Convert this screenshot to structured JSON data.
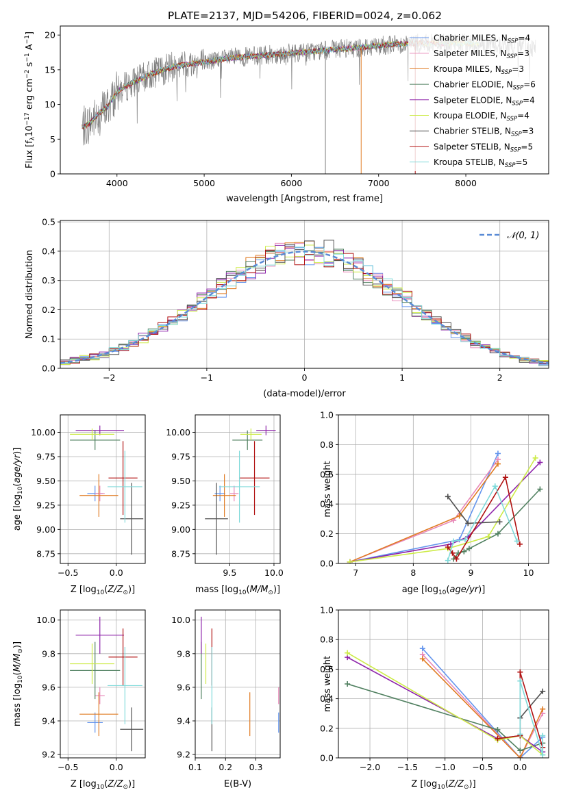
{
  "figure_title": "PLATE=2137, MJD=54206, FIBERID=0024, z=0.062",
  "colors": {
    "Chabrier MILES": "#6495ED",
    "Salpeter MILES": "#E889B9",
    "Kroupa MILES": "#E07B22",
    "Chabrier ELODIE": "#508060",
    "Salpeter ELODIE": "#8E24AA",
    "Kroupa ELODIE": "#CDEB48",
    "Chabrier STELIB": "#505050",
    "Salpeter STELIB": "#B01010",
    "Kroupa STELIB": "#7FDADA"
  },
  "model_order": [
    "Chabrier MILES",
    "Salpeter MILES",
    "Kroupa MILES",
    "Chabrier ELODIE",
    "Salpeter ELODIE",
    "Kroupa ELODIE",
    "Chabrier STELIB",
    "Salpeter STELIB",
    "Kroupa STELIB"
  ],
  "chart_data": [
    {
      "id": "spectrum",
      "type": "line",
      "title": "PLATE=2137, MJD=54206, FIBERID=0024, z=0.062",
      "xlabel": "wavelength [Angstrom, rest frame]",
      "ylabel": "Flux [f_λ 10^-17 erg cm^-2 s^-1 A^-1]",
      "xlim": [
        3350,
        8950
      ],
      "ylim": [
        0,
        21.3
      ],
      "xticks": [
        4000,
        5000,
        6000,
        7000,
        8000
      ],
      "yticks": [
        0,
        5,
        10,
        15,
        20
      ],
      "continuum": {
        "x": [
          3600,
          3700,
          3800,
          3900,
          4000,
          4100,
          4200,
          4300,
          4400,
          4500,
          4700,
          5000,
          5300,
          5600,
          5900,
          6200,
          6500,
          6800,
          7100,
          7400,
          7700,
          8000,
          8300,
          8600,
          8800
        ],
        "y": [
          6.6,
          7.4,
          8.8,
          9.8,
          11.8,
          12.6,
          13.3,
          13.8,
          14.4,
          14.9,
          15.6,
          16.1,
          16.7,
          17.0,
          17.3,
          17.6,
          17.9,
          18.2,
          18.6,
          18.8,
          18.8,
          18.8,
          18.6,
          18.4,
          18.2
        ]
      },
      "data_noise_level": 1.4,
      "series": [
        {
          "name": "Chabrier MILES",
          "n_ssp": "4",
          "label": "Chabrier MILES, N_SSP=4"
        },
        {
          "name": "Salpeter MILES",
          "n_ssp": "3",
          "label": "Salpeter MILES, N_SSP=3"
        },
        {
          "name": "Kroupa MILES",
          "n_ssp": "3",
          "label": "Kroupa MILES, N_SSP=3"
        },
        {
          "name": "Chabrier ELODIE",
          "n_ssp": "6",
          "label": "Chabrier ELODIE, N_SSP=6"
        },
        {
          "name": "Salpeter ELODIE",
          "n_ssp": "4",
          "label": "Salpeter ELODIE, N_SSP=4"
        },
        {
          "name": "Kroupa ELODIE",
          "n_ssp": "4",
          "label": "Kroupa ELODIE, N_SSP=4"
        },
        {
          "name": "Chabrier STELIB",
          "n_ssp": "3",
          "label": "Chabrier STELIB, N_SSP=3"
        },
        {
          "name": "Salpeter STELIB",
          "n_ssp": "5",
          "label": "Salpeter STELIB, N_SSP=5"
        },
        {
          "name": "Kroupa STELIB",
          "n_ssp": "5",
          "label": "Kroupa STELIB, N_SSP=5"
        }
      ],
      "legend_position": "right"
    },
    {
      "id": "residuals",
      "type": "histogram",
      "xlabel": "(data-model)/error",
      "ylabel": "Normed distribution",
      "xlim": [
        -2.5,
        2.5
      ],
      "ylim": [
        0,
        0.505
      ],
      "xticks": [
        -2,
        -1,
        0,
        1,
        2
      ],
      "yticks": [
        0.0,
        0.1,
        0.2,
        0.3,
        0.4,
        0.5
      ],
      "bin_width": 0.1,
      "reference_curve": {
        "name": "N(0,1)",
        "label": "𝒩(0, 1)",
        "mean": 0,
        "sigma": 1,
        "style": "dashed"
      },
      "legend_position": "upper right",
      "grid": true
    },
    {
      "id": "age_vs_Z",
      "type": "errorbar",
      "xlabel": "Z [log10(Z/Z⊙)]",
      "ylabel": "age [log10(age/yr)]",
      "xlim": [
        -0.58,
        0.3
      ],
      "ylim": [
        8.65,
        10.18
      ],
      "xticks": [
        -0.5,
        0.0
      ],
      "yticks": [
        8.75,
        9.0,
        9.25,
        9.5,
        9.75,
        10.0
      ],
      "grid": true,
      "points": [
        {
          "model": "Chabrier MILES",
          "x": -0.22,
          "xerr": 0.08,
          "y": 9.37,
          "yerr": 0.08
        },
        {
          "model": "Salpeter MILES",
          "x": -0.17,
          "xerr": 0.05,
          "y": 9.37,
          "yerr": 0.08
        },
        {
          "model": "Kroupa MILES",
          "x": -0.18,
          "xerr": 0.2,
          "y": 9.35,
          "yerr": 0.22
        },
        {
          "model": "Chabrier ELODIE",
          "x": -0.22,
          "xerr": 0.26,
          "y": 9.92,
          "yerr": 0.1
        },
        {
          "model": "Salpeter ELODIE",
          "x": -0.17,
          "xerr": 0.25,
          "y": 10.02,
          "yerr": 0.05
        },
        {
          "model": "Kroupa ELODIE",
          "x": -0.25,
          "xerr": 0.23,
          "y": 9.98,
          "yerr": 0.06
        },
        {
          "model": "Chabrier STELIB",
          "x": 0.16,
          "xerr": 0.12,
          "y": 9.11,
          "yerr": 0.37
        },
        {
          "model": "Salpeter STELIB",
          "x": 0.07,
          "xerr": 0.15,
          "y": 9.53,
          "yerr": 0.38
        },
        {
          "model": "Kroupa STELIB",
          "x": 0.09,
          "xerr": 0.18,
          "y": 9.44,
          "yerr": 0.37
        }
      ]
    },
    {
      "id": "age_vs_mass",
      "type": "errorbar",
      "xlabel": "mass [log10(M/M⊙)]",
      "ylabel": "",
      "xlim": [
        9.11,
        10.07
      ],
      "ylim": [
        8.65,
        10.18
      ],
      "xticks": [
        9.5,
        10.0
      ],
      "yticks": [
        8.75,
        9.0,
        9.25,
        9.5,
        9.75,
        10.0
      ],
      "grid": true,
      "points": [
        {
          "model": "Chabrier MILES",
          "x": 9.39,
          "xerr": 0.06,
          "y": 9.37,
          "yerr": 0.08
        },
        {
          "model": "Salpeter MILES",
          "x": 9.55,
          "xerr": 0.05,
          "y": 9.37,
          "yerr": 0.08
        },
        {
          "model": "Kroupa MILES",
          "x": 9.44,
          "xerr": 0.13,
          "y": 9.35,
          "yerr": 0.22
        },
        {
          "model": "Chabrier ELODIE",
          "x": 9.7,
          "xerr": 0.17,
          "y": 9.92,
          "yerr": 0.1
        },
        {
          "model": "Salpeter ELODIE",
          "x": 9.91,
          "xerr": 0.11,
          "y": 10.02,
          "yerr": 0.05
        },
        {
          "model": "Kroupa ELODIE",
          "x": 9.74,
          "xerr": 0.12,
          "y": 9.98,
          "yerr": 0.06
        },
        {
          "model": "Chabrier STELIB",
          "x": 9.35,
          "xerr": 0.13,
          "y": 9.11,
          "yerr": 0.37
        },
        {
          "model": "Salpeter STELIB",
          "x": 9.78,
          "xerr": 0.17,
          "y": 9.53,
          "yerr": 0.38
        },
        {
          "model": "Kroupa STELIB",
          "x": 9.61,
          "xerr": 0.23,
          "y": 9.44,
          "yerr": 0.37
        }
      ]
    },
    {
      "id": "weight_vs_age",
      "type": "line",
      "xlabel": "age [log10(age/yr)]",
      "ylabel": "mass weight",
      "xlim": [
        6.7,
        10.35
      ],
      "ylim": [
        0,
        1.0
      ],
      "xticks": [
        7,
        8,
        9,
        10
      ],
      "yticks": [
        0.0,
        0.2,
        0.4,
        0.6,
        0.8,
        1.0
      ],
      "grid": true,
      "series": [
        {
          "name": "Chabrier MILES",
          "x": [
            6.9,
            8.8,
            9.47
          ],
          "y": [
            0.01,
            0.16,
            0.74
          ]
        },
        {
          "name": "Salpeter MILES",
          "x": [
            6.9,
            8.7,
            9.47
          ],
          "y": [
            0.01,
            0.29,
            0.7
          ]
        },
        {
          "name": "Kroupa MILES",
          "x": [
            6.9,
            8.8,
            9.47
          ],
          "y": [
            0.01,
            0.32,
            0.67
          ]
        },
        {
          "name": "Chabrier ELODIE",
          "x": [
            8.7,
            8.78,
            8.88,
            8.97,
            9.47,
            10.2
          ],
          "y": [
            0.03,
            0.07,
            0.08,
            0.1,
            0.2,
            0.5
          ]
        },
        {
          "name": "Salpeter ELODIE",
          "x": [
            6.9,
            8.65,
            8.95,
            10.2
          ],
          "y": [
            0.01,
            0.13,
            0.18,
            0.68
          ]
        },
        {
          "name": "Kroupa ELODIE",
          "x": [
            6.9,
            8.6,
            9.3,
            10.12
          ],
          "y": [
            0.01,
            0.1,
            0.18,
            0.71
          ]
        },
        {
          "name": "Chabrier STELIB",
          "x": [
            8.6,
            8.95,
            9.5
          ],
          "y": [
            0.45,
            0.27,
            0.28
          ]
        },
        {
          "name": "Salpeter STELIB",
          "x": [
            8.6,
            8.68,
            8.75,
            9.6,
            9.85
          ],
          "y": [
            0.11,
            0.07,
            0.03,
            0.58,
            0.13
          ]
        },
        {
          "name": "Kroupa STELIB",
          "x": [
            8.6,
            8.7,
            8.9,
            9.42,
            9.8
          ],
          "y": [
            0.02,
            0.15,
            0.16,
            0.52,
            0.15
          ]
        }
      ]
    },
    {
      "id": "mass_vs_Z",
      "type": "errorbar",
      "xlabel": "Z [log10(Z/Z⊙)]",
      "ylabel": "mass [log10(M/M⊙)]",
      "xlim": [
        -0.58,
        0.3
      ],
      "ylim": [
        9.18,
        10.06
      ],
      "xticks": [
        -0.5,
        0.0
      ],
      "yticks": [
        9.2,
        9.4,
        9.6,
        9.8,
        10.0
      ],
      "grid": true,
      "points": [
        {
          "model": "Chabrier MILES",
          "x": -0.22,
          "xerr": 0.08,
          "y": 9.39,
          "yerr": 0.06
        },
        {
          "model": "Salpeter MILES",
          "x": -0.17,
          "xerr": 0.05,
          "y": 9.55,
          "yerr": 0.05
        },
        {
          "model": "Kroupa MILES",
          "x": -0.18,
          "xerr": 0.2,
          "y": 9.44,
          "yerr": 0.13
        },
        {
          "model": "Chabrier ELODIE",
          "x": -0.22,
          "xerr": 0.26,
          "y": 9.7,
          "yerr": 0.17
        },
        {
          "model": "Salpeter ELODIE",
          "x": -0.17,
          "xerr": 0.25,
          "y": 9.91,
          "yerr": 0.11
        },
        {
          "model": "Kroupa ELODIE",
          "x": -0.25,
          "xerr": 0.23,
          "y": 9.74,
          "yerr": 0.12
        },
        {
          "model": "Chabrier STELIB",
          "x": 0.16,
          "xerr": 0.12,
          "y": 9.35,
          "yerr": 0.13
        },
        {
          "model": "Salpeter STELIB",
          "x": 0.07,
          "xerr": 0.15,
          "y": 9.78,
          "yerr": 0.17
        },
        {
          "model": "Kroupa STELIB",
          "x": 0.09,
          "xerr": 0.18,
          "y": 9.61,
          "yerr": 0.23
        }
      ]
    },
    {
      "id": "mass_vs_ebv",
      "type": "errorbar",
      "xlabel": "E(B-V)",
      "ylabel": "",
      "xlim": [
        0.1,
        0.38
      ],
      "ylim": [
        9.18,
        10.06
      ],
      "xticks": [
        0.1,
        0.2,
        0.3
      ],
      "yticks": [
        9.2,
        9.4,
        9.6,
        9.8,
        10.0
      ],
      "grid": true,
      "points": [
        {
          "model": "Chabrier MILES",
          "x": 0.375,
          "xerr": 0,
          "y": 9.39,
          "yerr": 0.06
        },
        {
          "model": "Salpeter MILES",
          "x": 0.375,
          "xerr": 0,
          "y": 9.55,
          "yerr": 0.05
        },
        {
          "model": "Kroupa MILES",
          "x": 0.28,
          "xerr": 0,
          "y": 9.44,
          "yerr": 0.13
        },
        {
          "model": "Chabrier ELODIE",
          "x": 0.12,
          "xerr": 0,
          "y": 9.7,
          "yerr": 0.17
        },
        {
          "model": "Salpeter ELODIE",
          "x": 0.12,
          "xerr": 0,
          "y": 9.91,
          "yerr": 0.11
        },
        {
          "model": "Kroupa ELODIE",
          "x": 0.135,
          "xerr": 0,
          "y": 9.74,
          "yerr": 0.12
        },
        {
          "model": "Chabrier STELIB",
          "x": 0.155,
          "xerr": 0,
          "y": 9.35,
          "yerr": 0.13
        },
        {
          "model": "Salpeter STELIB",
          "x": 0.155,
          "xerr": 0,
          "y": 9.78,
          "yerr": 0.17
        },
        {
          "model": "Kroupa STELIB",
          "x": 0.155,
          "xerr": 0,
          "y": 9.61,
          "yerr": 0.23
        }
      ]
    },
    {
      "id": "weight_vs_Z",
      "type": "line",
      "xlabel": "Z [log10(Z/Z⊙)]",
      "ylabel": "mass weight",
      "xlim": [
        -2.42,
        0.38
      ],
      "ylim": [
        0,
        1.0
      ],
      "xticks": [
        -2.0,
        -1.5,
        -1.0,
        -0.5,
        0.0
      ],
      "yticks": [
        0.0,
        0.2,
        0.4,
        0.6,
        0.8,
        1.0
      ],
      "grid": true,
      "series": [
        {
          "name": "Chabrier MILES",
          "x": [
            -1.3,
            0.0,
            0.3
          ],
          "y": [
            0.74,
            0.0,
            0.14
          ]
        },
        {
          "name": "Salpeter MILES",
          "x": [
            -1.3,
            0.0,
            0.3
          ],
          "y": [
            0.7,
            0.0,
            0.3
          ]
        },
        {
          "name": "Kroupa MILES",
          "x": [
            -1.3,
            0.0,
            0.3
          ],
          "y": [
            0.67,
            0.0,
            0.33
          ]
        },
        {
          "name": "Chabrier ELODIE",
          "x": [
            -2.3,
            -0.3,
            0.0,
            0.3
          ],
          "y": [
            0.5,
            0.19,
            0.05,
            0.1
          ]
        },
        {
          "name": "Salpeter ELODIE",
          "x": [
            -2.3,
            -0.3,
            0.0,
            0.3
          ],
          "y": [
            0.68,
            0.13,
            0.15,
            0.04
          ]
        },
        {
          "name": "Kroupa ELODIE",
          "x": [
            -2.3,
            -0.3,
            0.0,
            0.3
          ],
          "y": [
            0.71,
            0.12,
            0.15,
            0.02
          ]
        },
        {
          "name": "Chabrier STELIB",
          "x": [
            0.0,
            0.3
          ],
          "y": [
            0.27,
            0.45
          ]
        },
        {
          "name": "Salpeter STELIB",
          "x": [
            -0.3,
            0.0,
            0.0,
            0.3
          ],
          "y": [
            0.13,
            0.15,
            0.58,
            0.07
          ]
        },
        {
          "name": "Kroupa STELIB",
          "x": [
            0.0,
            0.0,
            0.3,
            0.3
          ],
          "y": [
            0.16,
            0.52,
            0.02,
            0.15
          ]
        }
      ]
    }
  ]
}
